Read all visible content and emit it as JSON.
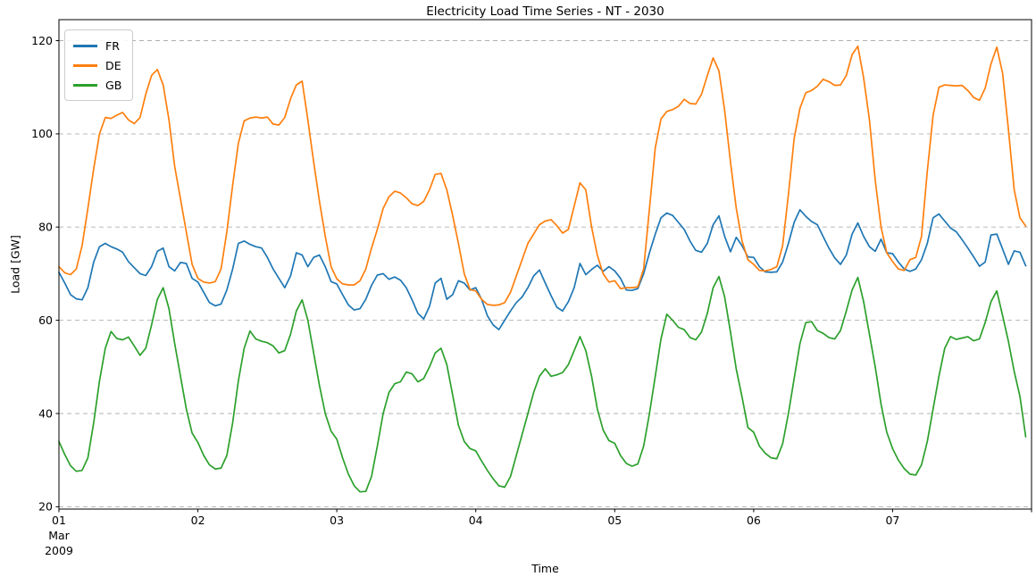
{
  "chart_data": {
    "type": "line",
    "title": "Electricity Load Time Series - NT - 2030",
    "xlabel": "Time",
    "ylabel": "Load [GW]",
    "x_start_label": "01 Mar 2009",
    "x_step_hours": 1,
    "xlim_hours": [
      0,
      168
    ],
    "ylim": [
      19.5,
      124.5
    ],
    "grid": "horizontal dashed at y ticks",
    "legend_position": "upper left",
    "yticks": [
      20,
      40,
      60,
      80,
      100,
      120
    ],
    "xticks": [
      {
        "hour": 0,
        "label": "01",
        "sublabels": [
          "Mar",
          "2009"
        ]
      },
      {
        "hour": 24,
        "label": "02"
      },
      {
        "hour": 48,
        "label": "03"
      },
      {
        "hour": 72,
        "label": "04"
      },
      {
        "hour": 96,
        "label": "05"
      },
      {
        "hour": 120,
        "label": "06"
      },
      {
        "hour": 144,
        "label": "07"
      },
      {
        "hour": 168,
        "label": ""
      }
    ],
    "series": [
      {
        "name": "FR",
        "color": "#1f77b4",
        "values": [
          70.3,
          68.0,
          65.5,
          64.6,
          64.4,
          67.0,
          72.5,
          75.8,
          76.5,
          75.8,
          75.3,
          74.6,
          72.6,
          71.3,
          70.0,
          69.6,
          71.5,
          74.8,
          75.5,
          71.5,
          70.6,
          72.4,
          72.2,
          69.0,
          68.2,
          66.0,
          63.8,
          63.1,
          63.5,
          66.5,
          71.0,
          76.5,
          77.0,
          76.3,
          75.8,
          75.5,
          73.5,
          71.0,
          69.0,
          67.0,
          69.5,
          74.5,
          74.0,
          71.5,
          73.5,
          74.0,
          71.5,
          68.3,
          67.8,
          65.5,
          63.3,
          62.2,
          62.5,
          64.5,
          67.5,
          69.7,
          70.0,
          68.8,
          69.3,
          68.6,
          67.0,
          64.4,
          61.5,
          60.3,
          63.0,
          68.0,
          69.0,
          64.5,
          65.5,
          68.5,
          68.0,
          66.5,
          67.0,
          64.5,
          61.0,
          59.0,
          58.0,
          60.0,
          62.0,
          63.8,
          65.0,
          67.0,
          69.5,
          70.8,
          68.0,
          65.3,
          62.8,
          62.0,
          64.0,
          67.0,
          72.2,
          69.8,
          70.9,
          71.8,
          70.5,
          71.5,
          70.6,
          69.0,
          66.5,
          66.4,
          66.8,
          70.0,
          74.5,
          78.5,
          82.0,
          83.0,
          82.5,
          81.0,
          79.5,
          77.0,
          75.0,
          74.6,
          76.5,
          80.5,
          82.4,
          78.0,
          74.7,
          77.8,
          76.0,
          73.6,
          73.5,
          71.5,
          70.4,
          70.3,
          70.4,
          72.5,
          76.5,
          81.0,
          83.7,
          82.3,
          81.2,
          80.5,
          78.0,
          75.5,
          73.4,
          72.0,
          74.0,
          78.5,
          80.9,
          78.0,
          75.8,
          74.8,
          77.4,
          74.5,
          74.3,
          72.5,
          71.0,
          70.5,
          71.0,
          73.0,
          76.5,
          82.0,
          82.8,
          81.3,
          79.8,
          79.0,
          77.3,
          75.5,
          73.6,
          71.6,
          72.5,
          78.3,
          78.5,
          75.3,
          72.0,
          74.9,
          74.6,
          71.7
        ]
      },
      {
        "name": "DE",
        "color": "#ff7f0e",
        "values": [
          71.5,
          70.2,
          69.8,
          71.0,
          76.0,
          84.0,
          92.5,
          100.0,
          103.5,
          103.3,
          104.0,
          104.6,
          103.0,
          102.2,
          103.5,
          108.5,
          112.5,
          113.8,
          110.5,
          103.0,
          93.0,
          86.0,
          79.0,
          72.0,
          69.0,
          68.2,
          68.0,
          68.3,
          71.0,
          79.0,
          89.0,
          98.0,
          102.8,
          103.4,
          103.6,
          103.4,
          103.6,
          102.1,
          101.9,
          103.5,
          107.5,
          110.5,
          111.3,
          103.0,
          94.0,
          85.5,
          78.0,
          71.5,
          68.9,
          67.8,
          67.6,
          67.6,
          68.5,
          71.0,
          75.5,
          79.5,
          84.0,
          86.5,
          87.7,
          87.3,
          86.3,
          85.0,
          84.6,
          85.5,
          88.0,
          91.3,
          91.5,
          88.0,
          82.5,
          76.5,
          70.0,
          66.6,
          66.3,
          64.5,
          63.4,
          63.2,
          63.3,
          63.8,
          66.0,
          69.5,
          73.0,
          76.5,
          78.5,
          80.5,
          81.3,
          81.6,
          80.3,
          78.7,
          79.5,
          84.5,
          89.5,
          88.0,
          80.0,
          74.0,
          70.0,
          68.2,
          68.5,
          66.8,
          67.0,
          67.0,
          67.2,
          71.0,
          84.0,
          97.0,
          103.2,
          104.8,
          105.2,
          105.9,
          107.4,
          106.5,
          106.4,
          108.5,
          112.5,
          116.3,
          113.5,
          105.0,
          94.0,
          84.0,
          77.0,
          73.0,
          72.0,
          70.7,
          70.6,
          70.9,
          71.5,
          76.0,
          87.0,
          99.0,
          105.5,
          108.8,
          109.3,
          110.2,
          111.7,
          111.2,
          110.4,
          110.5,
          112.5,
          117.0,
          118.8,
          112.0,
          103.0,
          90.0,
          80.0,
          74.5,
          72.6,
          71.0,
          70.7,
          73.0,
          73.5,
          78.0,
          92.0,
          104.0,
          110.0,
          110.5,
          110.4,
          110.3,
          110.4,
          109.3,
          107.8,
          107.2,
          109.8,
          115.0,
          118.6,
          113.0,
          101.0,
          88.0,
          82.0,
          80.2
        ]
      },
      {
        "name": "GB",
        "color": "#2ca02c",
        "values": [
          34.0,
          31.2,
          28.8,
          27.6,
          27.8,
          30.5,
          38.0,
          47.0,
          54.0,
          57.6,
          56.1,
          55.8,
          56.4,
          54.5,
          52.5,
          54.0,
          59.0,
          64.5,
          67.0,
          62.5,
          55.0,
          48.0,
          41.0,
          35.8,
          33.8,
          31.0,
          29.0,
          28.1,
          28.3,
          31.0,
          38.0,
          47.0,
          54.0,
          57.7,
          56.0,
          55.5,
          55.2,
          54.5,
          53.0,
          53.5,
          57.0,
          62.0,
          64.4,
          60.0,
          53.0,
          46.0,
          40.0,
          36.2,
          34.5,
          30.5,
          27.0,
          24.5,
          23.2,
          23.3,
          26.5,
          33.0,
          40.0,
          44.5,
          46.4,
          46.8,
          48.9,
          48.5,
          46.8,
          47.5,
          50.0,
          53.0,
          54.0,
          50.5,
          44.0,
          37.5,
          34.0,
          32.5,
          32.0,
          29.8,
          27.8,
          26.0,
          24.5,
          24.2,
          26.5,
          31.0,
          35.5,
          40.0,
          44.5,
          48.0,
          49.6,
          48.0,
          48.3,
          48.8,
          50.5,
          53.5,
          56.5,
          53.5,
          48.0,
          41.0,
          36.5,
          34.2,
          33.6,
          31.0,
          29.3,
          28.7,
          29.2,
          33.0,
          40.0,
          48.0,
          56.0,
          61.3,
          60.0,
          58.5,
          58.0,
          56.3,
          55.8,
          57.5,
          61.5,
          67.0,
          69.4,
          65.0,
          57.5,
          49.5,
          43.5,
          37.0,
          36.0,
          33.0,
          31.5,
          30.5,
          30.3,
          33.5,
          40.0,
          47.5,
          55.0,
          59.5,
          59.7,
          57.8,
          57.2,
          56.3,
          56.0,
          57.8,
          62.0,
          66.5,
          69.2,
          64.0,
          57.0,
          50.0,
          42.0,
          36.0,
          32.5,
          30.0,
          28.2,
          27.0,
          26.8,
          29.0,
          34.0,
          41.0,
          48.0,
          54.0,
          56.5,
          55.9,
          56.2,
          56.5,
          55.6,
          56.0,
          59.5,
          64.0,
          66.3,
          61.0,
          55.5,
          49.0,
          43.7,
          35.0
        ]
      }
    ]
  }
}
